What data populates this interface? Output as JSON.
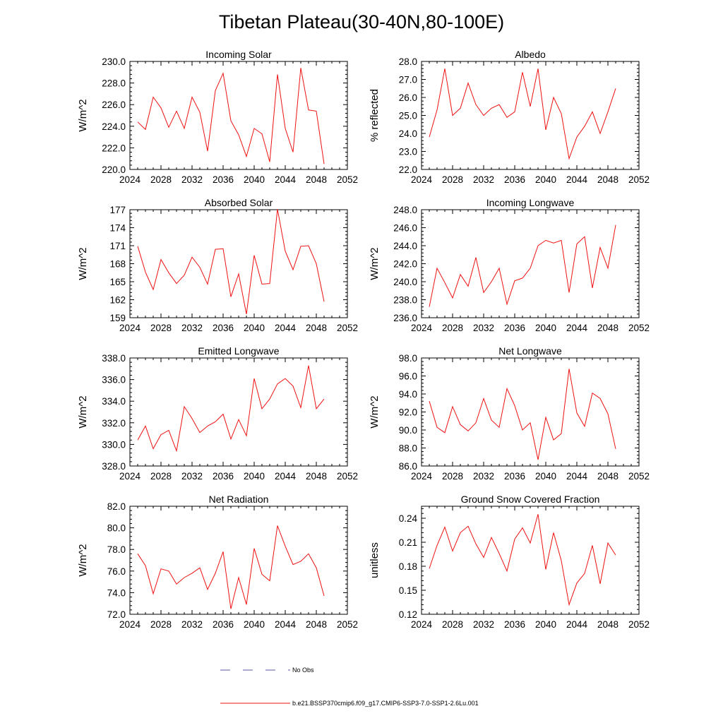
{
  "title": "Tibetan Plateau(30-40N,80-100E)",
  "legend": [
    {
      "label": "No Obs",
      "color": "#5a5aa0",
      "style": "dashed"
    },
    {
      "label": "b.e21.BSSP370cmip6.f09_g17.CMIP6-SSP3-7.0-SSP1-2.6Lu.001",
      "color": "#ee1111",
      "style": "solid"
    }
  ],
  "series_color": "#ee1111",
  "chart_data": [
    {
      "type": "line",
      "title": "Incoming Solar",
      "ylabel": "W/m^2",
      "xlim": [
        2024,
        2052
      ],
      "xticks": [
        "2024",
        "2028",
        "2032",
        "2036",
        "2040",
        "2044",
        "2048",
        "2052"
      ],
      "ylim": [
        220,
        230
      ],
      "yticks": [
        "220.0",
        "222.0",
        "224.0",
        "226.0",
        "228.0",
        "230.0"
      ],
      "x": [
        2025,
        2026,
        2027,
        2028,
        2029,
        2030,
        2031,
        2032,
        2033,
        2034,
        2035,
        2036,
        2037,
        2038,
        2039,
        2040,
        2041,
        2042,
        2043,
        2044,
        2045,
        2046,
        2047,
        2048,
        2049
      ],
      "values": [
        224.4,
        223.7,
        226.7,
        225.7,
        223.9,
        225.4,
        223.8,
        226.7,
        225.3,
        221.7,
        227.3,
        228.9,
        224.5,
        223.2,
        221.2,
        223.8,
        223.3,
        220.7,
        228.8,
        223.8,
        221.6,
        229.4,
        225.5,
        225.4,
        220.5
      ]
    },
    {
      "type": "line",
      "title": "Albedo",
      "ylabel": "% reflected",
      "xlim": [
        2024,
        2052
      ],
      "xticks": [
        "2024",
        "2028",
        "2032",
        "2036",
        "2040",
        "2044",
        "2048",
        "2052"
      ],
      "ylim": [
        22,
        28
      ],
      "yticks": [
        "22.0",
        "23.0",
        "24.0",
        "25.0",
        "26.0",
        "27.0",
        "28.0"
      ],
      "x": [
        2025,
        2026,
        2027,
        2028,
        2029,
        2030,
        2031,
        2032,
        2033,
        2034,
        2035,
        2036,
        2037,
        2038,
        2039,
        2040,
        2041,
        2042,
        2043,
        2044,
        2045,
        2046,
        2047,
        2048,
        2049
      ],
      "values": [
        23.8,
        25.3,
        27.6,
        25.0,
        25.4,
        26.8,
        25.6,
        25.0,
        25.4,
        25.6,
        24.9,
        25.2,
        27.4,
        25.5,
        27.6,
        24.2,
        26.0,
        25.1,
        22.6,
        23.8,
        24.4,
        25.2,
        24.0,
        25.2,
        26.5
      ]
    },
    {
      "type": "line",
      "title": "Absorbed Solar",
      "ylabel": "W/m^2",
      "xlim": [
        2024,
        2052
      ],
      "xticks": [
        "2024",
        "2028",
        "2032",
        "2036",
        "2040",
        "2044",
        "2048",
        "2052"
      ],
      "ylim": [
        159,
        177
      ],
      "yticks": [
        "159",
        "162",
        "165",
        "168",
        "171",
        "174",
        "177"
      ],
      "x": [
        2025,
        2026,
        2027,
        2028,
        2029,
        2030,
        2031,
        2032,
        2033,
        2034,
        2035,
        2036,
        2037,
        2038,
        2039,
        2040,
        2041,
        2042,
        2043,
        2044,
        2045,
        2046,
        2047,
        2048,
        2049
      ],
      "values": [
        170.9,
        166.6,
        163.7,
        168.7,
        166.5,
        164.7,
        166.1,
        169.1,
        167.4,
        164.6,
        170.4,
        170.5,
        162.5,
        166.3,
        159.6,
        169.4,
        164.6,
        164.7,
        177.1,
        170.1,
        167.0,
        170.9,
        171.0,
        168.0,
        161.7
      ]
    },
    {
      "type": "line",
      "title": "Incoming Longwave",
      "ylabel": "W/m^2",
      "xlim": [
        2024,
        2052
      ],
      "xticks": [
        "2024",
        "2028",
        "2032",
        "2036",
        "2040",
        "2044",
        "2048",
        "2052"
      ],
      "ylim": [
        236,
        248
      ],
      "yticks": [
        "236.0",
        "238.0",
        "240.0",
        "242.0",
        "244.0",
        "246.0",
        "248.0"
      ],
      "x": [
        2025,
        2026,
        2027,
        2028,
        2029,
        2030,
        2031,
        2032,
        2033,
        2034,
        2035,
        2036,
        2037,
        2038,
        2039,
        2040,
        2041,
        2042,
        2043,
        2044,
        2045,
        2046,
        2047,
        2048,
        2049
      ],
      "values": [
        237.2,
        241.5,
        239.9,
        238.2,
        240.8,
        239.5,
        242.7,
        238.8,
        240.0,
        241.5,
        237.5,
        240.1,
        240.4,
        241.5,
        244.0,
        244.6,
        244.3,
        244.6,
        238.8,
        244.2,
        245.0,
        239.3,
        243.8,
        241.5,
        246.3
      ]
    },
    {
      "type": "line",
      "title": "Emitted Longwave",
      "ylabel": "W/m^2",
      "xlim": [
        2024,
        2052
      ],
      "xticks": [
        "2024",
        "2028",
        "2032",
        "2036",
        "2040",
        "2044",
        "2048",
        "2052"
      ],
      "ylim": [
        328,
        338
      ],
      "yticks": [
        "328.0",
        "330.0",
        "332.0",
        "334.0",
        "336.0",
        "338.0"
      ],
      "x": [
        2025,
        2026,
        2027,
        2028,
        2029,
        2030,
        2031,
        2032,
        2033,
        2034,
        2035,
        2036,
        2037,
        2038,
        2039,
        2040,
        2041,
        2042,
        2043,
        2044,
        2045,
        2046,
        2047,
        2048,
        2049
      ],
      "values": [
        330.4,
        331.7,
        329.6,
        330.9,
        331.3,
        329.4,
        333.5,
        332.4,
        331.1,
        331.7,
        332.1,
        332.8,
        330.5,
        332.3,
        330.8,
        336.1,
        333.3,
        334.2,
        335.6,
        336.1,
        335.4,
        333.4,
        337.3,
        333.3,
        334.2
      ]
    },
    {
      "type": "line",
      "title": "Net Longwave",
      "ylabel": "W/m^2",
      "xlim": [
        2024,
        2052
      ],
      "xticks": [
        "2024",
        "2028",
        "2032",
        "2036",
        "2040",
        "2044",
        "2048",
        "2052"
      ],
      "ylim": [
        86,
        98
      ],
      "yticks": [
        "86.0",
        "88.0",
        "90.0",
        "92.0",
        "94.0",
        "96.0",
        "98.0"
      ],
      "x": [
        2025,
        2026,
        2027,
        2028,
        2029,
        2030,
        2031,
        2032,
        2033,
        2034,
        2035,
        2036,
        2037,
        2038,
        2039,
        2040,
        2041,
        2042,
        2043,
        2044,
        2045,
        2046,
        2047,
        2048,
        2049
      ],
      "values": [
        93.2,
        90.3,
        89.7,
        92.6,
        90.6,
        89.9,
        90.8,
        93.5,
        91.1,
        90.3,
        94.6,
        92.7,
        90.0,
        90.8,
        86.7,
        91.4,
        88.9,
        89.6,
        96.8,
        91.9,
        90.4,
        94.1,
        93.5,
        91.8,
        87.9
      ]
    },
    {
      "type": "line",
      "title": "Net Radiation",
      "ylabel": "W/m^2",
      "xlim": [
        2024,
        2052
      ],
      "xticks": [
        "2024",
        "2028",
        "2032",
        "2036",
        "2040",
        "2044",
        "2048",
        "2052"
      ],
      "ylim": [
        72,
        82
      ],
      "yticks": [
        "72.0",
        "74.0",
        "76.0",
        "78.0",
        "80.0",
        "82.0"
      ],
      "x": [
        2025,
        2026,
        2027,
        2028,
        2029,
        2030,
        2031,
        2032,
        2033,
        2034,
        2035,
        2036,
        2037,
        2038,
        2039,
        2040,
        2041,
        2042,
        2043,
        2044,
        2045,
        2046,
        2047,
        2048,
        2049
      ],
      "values": [
        77.6,
        76.5,
        73.9,
        76.2,
        76.0,
        74.8,
        75.4,
        75.8,
        76.3,
        74.3,
        75.8,
        77.8,
        72.5,
        75.4,
        72.9,
        78.1,
        75.7,
        75.1,
        80.2,
        78.3,
        76.6,
        76.9,
        77.6,
        76.3,
        73.7
      ]
    },
    {
      "type": "line",
      "title": "Ground Snow Covered Fraction",
      "ylabel": "unitless",
      "xlim": [
        2024,
        2052
      ],
      "xticks": [
        "2024",
        "2028",
        "2032",
        "2036",
        "2040",
        "2044",
        "2048",
        "2052"
      ],
      "ylim": [
        0.12,
        0.255
      ],
      "yticks": [
        "0.12",
        "0.15",
        "0.18",
        "0.21",
        "0.24"
      ],
      "ytick_values": [
        0.12,
        0.15,
        0.18,
        0.21,
        0.24
      ],
      "x": [
        2025,
        2026,
        2027,
        2028,
        2029,
        2030,
        2031,
        2032,
        2033,
        2034,
        2035,
        2036,
        2037,
        2038,
        2039,
        2040,
        2041,
        2042,
        2043,
        2044,
        2045,
        2046,
        2047,
        2048,
        2049
      ],
      "values": [
        0.177,
        0.206,
        0.229,
        0.199,
        0.222,
        0.23,
        0.208,
        0.191,
        0.216,
        0.196,
        0.174,
        0.214,
        0.228,
        0.209,
        0.245,
        0.176,
        0.222,
        0.187,
        0.132,
        0.159,
        0.171,
        0.206,
        0.158,
        0.209,
        0.194
      ]
    }
  ]
}
